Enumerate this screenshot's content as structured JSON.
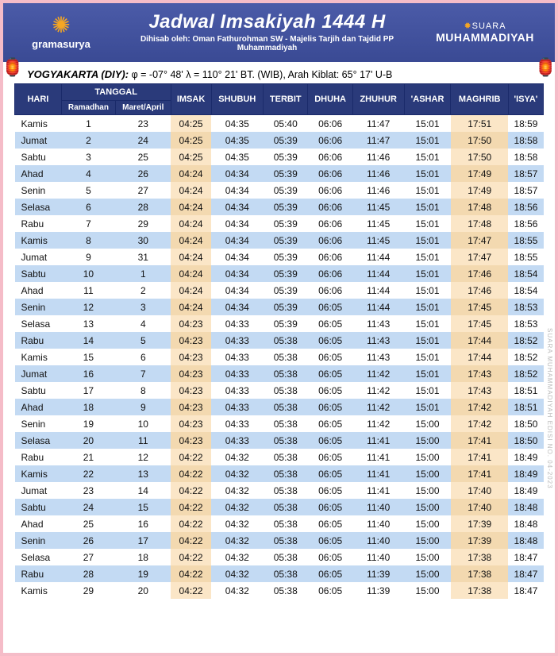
{
  "header": {
    "logo_left_text": "gramasurya",
    "title": "Jadwal Imsakiyah 1444 H",
    "subtitle": "Dihisab oleh: Oman Fathurohman SW - Majelis Tarjih dan Tajdid PP Muhammadiyah",
    "brand_top": "SUARA",
    "brand_bottom": "MUHAMMADIYAH"
  },
  "location": {
    "city": "YOGYAKARTA (DIY):",
    "coords": "φ = -07° 48'  λ = 110° 21'  BT. (WIB), Arah Kiblat: 65° 17'  U-B"
  },
  "columns": {
    "hari": "HARI",
    "tanggal": "TANGGAL",
    "ramadhan": "Ramadhan",
    "maret": "Maret/April",
    "imsak": "IMSAK",
    "shubuh": "SHUBUH",
    "terbit": "TERBIT",
    "dhuha": "DHUHA",
    "zhuhur": "ZHUHUR",
    "ashar": "'ASHAR",
    "maghrib": "MAGHRIB",
    "isya": "'ISYA'"
  },
  "rows": [
    {
      "hari": "Kamis",
      "r": "1",
      "m": "23",
      "imsak": "04:25",
      "shubuh": "04:35",
      "terbit": "05:40",
      "dhuha": "06:06",
      "zhuhur": "11:47",
      "ashar": "15:01",
      "maghrib": "17:51",
      "isya": "18:59"
    },
    {
      "hari": "Jumat",
      "r": "2",
      "m": "24",
      "imsak": "04:25",
      "shubuh": "04:35",
      "terbit": "05:39",
      "dhuha": "06:06",
      "zhuhur": "11:47",
      "ashar": "15:01",
      "maghrib": "17:50",
      "isya": "18:58"
    },
    {
      "hari": "Sabtu",
      "r": "3",
      "m": "25",
      "imsak": "04:25",
      "shubuh": "04:35",
      "terbit": "05:39",
      "dhuha": "06:06",
      "zhuhur": "11:46",
      "ashar": "15:01",
      "maghrib": "17:50",
      "isya": "18:58"
    },
    {
      "hari": "Ahad",
      "r": "4",
      "m": "26",
      "imsak": "04:24",
      "shubuh": "04:34",
      "terbit": "05:39",
      "dhuha": "06:06",
      "zhuhur": "11:46",
      "ashar": "15:01",
      "maghrib": "17:49",
      "isya": "18:57"
    },
    {
      "hari": "Senin",
      "r": "5",
      "m": "27",
      "imsak": "04:24",
      "shubuh": "04:34",
      "terbit": "05:39",
      "dhuha": "06:06",
      "zhuhur": "11:46",
      "ashar": "15:01",
      "maghrib": "17:49",
      "isya": "18:57"
    },
    {
      "hari": "Selasa",
      "r": "6",
      "m": "28",
      "imsak": "04:24",
      "shubuh": "04:34",
      "terbit": "05:39",
      "dhuha": "06:06",
      "zhuhur": "11:45",
      "ashar": "15:01",
      "maghrib": "17:48",
      "isya": "18:56"
    },
    {
      "hari": "Rabu",
      "r": "7",
      "m": "29",
      "imsak": "04:24",
      "shubuh": "04:34",
      "terbit": "05:39",
      "dhuha": "06:06",
      "zhuhur": "11:45",
      "ashar": "15:01",
      "maghrib": "17:48",
      "isya": "18:56"
    },
    {
      "hari": "Kamis",
      "r": "8",
      "m": "30",
      "imsak": "04:24",
      "shubuh": "04:34",
      "terbit": "05:39",
      "dhuha": "06:06",
      "zhuhur": "11:45",
      "ashar": "15:01",
      "maghrib": "17:47",
      "isya": "18:55"
    },
    {
      "hari": "Jumat",
      "r": "9",
      "m": "31",
      "imsak": "04:24",
      "shubuh": "04:34",
      "terbit": "05:39",
      "dhuha": "06:06",
      "zhuhur": "11:44",
      "ashar": "15:01",
      "maghrib": "17:47",
      "isya": "18:55"
    },
    {
      "hari": "Sabtu",
      "r": "10",
      "m": "1",
      "imsak": "04:24",
      "shubuh": "04:34",
      "terbit": "05:39",
      "dhuha": "06:06",
      "zhuhur": "11:44",
      "ashar": "15:01",
      "maghrib": "17:46",
      "isya": "18:54"
    },
    {
      "hari": "Ahad",
      "r": "11",
      "m": "2",
      "imsak": "04:24",
      "shubuh": "04:34",
      "terbit": "05:39",
      "dhuha": "06:06",
      "zhuhur": "11:44",
      "ashar": "15:01",
      "maghrib": "17:46",
      "isya": "18:54"
    },
    {
      "hari": "Senin",
      "r": "12",
      "m": "3",
      "imsak": "04:24",
      "shubuh": "04:34",
      "terbit": "05:39",
      "dhuha": "06:05",
      "zhuhur": "11:44",
      "ashar": "15:01",
      "maghrib": "17:45",
      "isya": "18:53"
    },
    {
      "hari": "Selasa",
      "r": "13",
      "m": "4",
      "imsak": "04:23",
      "shubuh": "04:33",
      "terbit": "05:39",
      "dhuha": "06:05",
      "zhuhur": "11:43",
      "ashar": "15:01",
      "maghrib": "17:45",
      "isya": "18:53"
    },
    {
      "hari": "Rabu",
      "r": "14",
      "m": "5",
      "imsak": "04:23",
      "shubuh": "04:33",
      "terbit": "05:38",
      "dhuha": "06:05",
      "zhuhur": "11:43",
      "ashar": "15:01",
      "maghrib": "17:44",
      "isya": "18:52"
    },
    {
      "hari": "Kamis",
      "r": "15",
      "m": "6",
      "imsak": "04:23",
      "shubuh": "04:33",
      "terbit": "05:38",
      "dhuha": "06:05",
      "zhuhur": "11:43",
      "ashar": "15:01",
      "maghrib": "17:44",
      "isya": "18:52"
    },
    {
      "hari": "Jumat",
      "r": "16",
      "m": "7",
      "imsak": "04:23",
      "shubuh": "04:33",
      "terbit": "05:38",
      "dhuha": "06:05",
      "zhuhur": "11:42",
      "ashar": "15:01",
      "maghrib": "17:43",
      "isya": "18:52"
    },
    {
      "hari": "Sabtu",
      "r": "17",
      "m": "8",
      "imsak": "04:23",
      "shubuh": "04:33",
      "terbit": "05:38",
      "dhuha": "06:05",
      "zhuhur": "11:42",
      "ashar": "15:01",
      "maghrib": "17:43",
      "isya": "18:51"
    },
    {
      "hari": "Ahad",
      "r": "18",
      "m": "9",
      "imsak": "04:23",
      "shubuh": "04:33",
      "terbit": "05:38",
      "dhuha": "06:05",
      "zhuhur": "11:42",
      "ashar": "15:01",
      "maghrib": "17:42",
      "isya": "18:51"
    },
    {
      "hari": "Senin",
      "r": "19",
      "m": "10",
      "imsak": "04:23",
      "shubuh": "04:33",
      "terbit": "05:38",
      "dhuha": "06:05",
      "zhuhur": "11:42",
      "ashar": "15:00",
      "maghrib": "17:42",
      "isya": "18:50"
    },
    {
      "hari": "Selasa",
      "r": "20",
      "m": "11",
      "imsak": "04:23",
      "shubuh": "04:33",
      "terbit": "05:38",
      "dhuha": "06:05",
      "zhuhur": "11:41",
      "ashar": "15:00",
      "maghrib": "17:41",
      "isya": "18:50"
    },
    {
      "hari": "Rabu",
      "r": "21",
      "m": "12",
      "imsak": "04:22",
      "shubuh": "04:32",
      "terbit": "05:38",
      "dhuha": "06:05",
      "zhuhur": "11:41",
      "ashar": "15:00",
      "maghrib": "17:41",
      "isya": "18:49"
    },
    {
      "hari": "Kamis",
      "r": "22",
      "m": "13",
      "imsak": "04:22",
      "shubuh": "04:32",
      "terbit": "05:38",
      "dhuha": "06:05",
      "zhuhur": "11:41",
      "ashar": "15:00",
      "maghrib": "17:41",
      "isya": "18:49"
    },
    {
      "hari": "Jumat",
      "r": "23",
      "m": "14",
      "imsak": "04:22",
      "shubuh": "04:32",
      "terbit": "05:38",
      "dhuha": "06:05",
      "zhuhur": "11:41",
      "ashar": "15:00",
      "maghrib": "17:40",
      "isya": "18:49"
    },
    {
      "hari": "Sabtu",
      "r": "24",
      "m": "15",
      "imsak": "04:22",
      "shubuh": "04:32",
      "terbit": "05:38",
      "dhuha": "06:05",
      "zhuhur": "11:40",
      "ashar": "15:00",
      "maghrib": "17:40",
      "isya": "18:48"
    },
    {
      "hari": "Ahad",
      "r": "25",
      "m": "16",
      "imsak": "04:22",
      "shubuh": "04:32",
      "terbit": "05:38",
      "dhuha": "06:05",
      "zhuhur": "11:40",
      "ashar": "15:00",
      "maghrib": "17:39",
      "isya": "18:48"
    },
    {
      "hari": "Senin",
      "r": "26",
      "m": "17",
      "imsak": "04:22",
      "shubuh": "04:32",
      "terbit": "05:38",
      "dhuha": "06:05",
      "zhuhur": "11:40",
      "ashar": "15:00",
      "maghrib": "17:39",
      "isya": "18:48"
    },
    {
      "hari": "Selasa",
      "r": "27",
      "m": "18",
      "imsak": "04:22",
      "shubuh": "04:32",
      "terbit": "05:38",
      "dhuha": "06:05",
      "zhuhur": "11:40",
      "ashar": "15:00",
      "maghrib": "17:38",
      "isya": "18:47"
    },
    {
      "hari": "Rabu",
      "r": "28",
      "m": "19",
      "imsak": "04:22",
      "shubuh": "04:32",
      "terbit": "05:38",
      "dhuha": "06:05",
      "zhuhur": "11:39",
      "ashar": "15:00",
      "maghrib": "17:38",
      "isya": "18:47"
    },
    {
      "hari": "Kamis",
      "r": "29",
      "m": "20",
      "imsak": "04:22",
      "shubuh": "04:32",
      "terbit": "05:38",
      "dhuha": "06:05",
      "zhuhur": "11:39",
      "ashar": "15:00",
      "maghrib": "17:38",
      "isya": "18:47"
    }
  ],
  "side_text": "SUARA MUHAMMADIYAH EDISI NO. 04-2023",
  "colors": {
    "header_bg": "#3f4f9a",
    "th_bg": "#2a3a7a",
    "row_even": "#ffffff",
    "row_odd": "#c3daf3",
    "highlight": "#fbe6c7",
    "border_frame": "#f5bcc8",
    "accent": "#f5a623"
  }
}
